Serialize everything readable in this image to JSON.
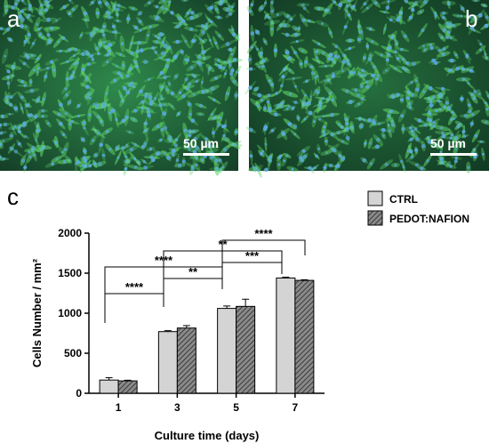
{
  "panels": {
    "a": {
      "letter": "a",
      "scale_label": "50 µm"
    },
    "b": {
      "letter": "b",
      "scale_label": "50 µm"
    },
    "c": {
      "letter": "c"
    }
  },
  "colors": {
    "ctrl_fill": "#d4d4d4",
    "pedot_fill": "#8a8a8a",
    "pedot_hatch": "#3a3a3a",
    "micrograph_bg_a": "#1f6a3c",
    "micrograph_bg_b": "#1c5a35",
    "nuclei": "#5aa9e6"
  },
  "chart_data": {
    "type": "bar",
    "categories": [
      "1",
      "3",
      "5",
      "7"
    ],
    "series": [
      {
        "name": "CTRL",
        "values": [
          165,
          770,
          1060,
          1440
        ],
        "errors": [
          30,
          12,
          30,
          10
        ]
      },
      {
        "name": "PEDOT:NAFION",
        "values": [
          155,
          815,
          1085,
          1410
        ],
        "errors": [
          8,
          30,
          90,
          8
        ]
      }
    ],
    "xlabel": "Culture time (days)",
    "ylabel": "Cells Number / mm²",
    "ylim": [
      0,
      2000
    ],
    "yticks": [
      "0",
      "500",
      "1000",
      "1500",
      "2000"
    ],
    "legend_position": "top-right",
    "significance": [
      {
        "from": 0,
        "to": 1,
        "label": "****",
        "level": 0
      },
      {
        "from": 0,
        "to": 2,
        "label": "****",
        "level": 1
      },
      {
        "from": 1,
        "to": 2,
        "label": "**",
        "level": 0
      },
      {
        "from": 1,
        "to": 3,
        "label": "**",
        "level": 1
      },
      {
        "from": 2,
        "to": 3,
        "label": "***",
        "level": 0
      },
      {
        "from": 2,
        "to": 4,
        "label": "****",
        "level": 1
      }
    ]
  }
}
